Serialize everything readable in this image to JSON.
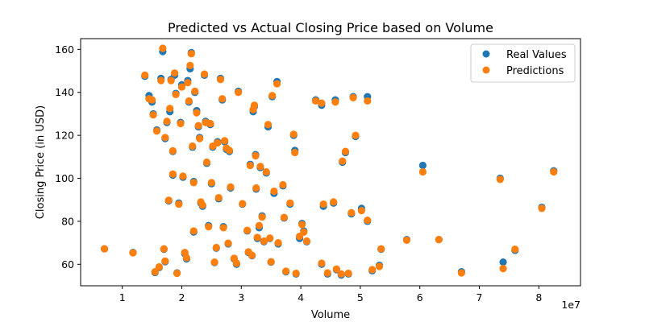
{
  "chart_data": {
    "type": "scatter",
    "title": "Predicted vs Actual Closing Price based on Volume",
    "xlabel": "Volume",
    "ylabel": "Closing Price (in USD)",
    "x_offset_label": "1e7",
    "xlim": [
      0.3,
      8.7
    ],
    "ylim": [
      50,
      165
    ],
    "xticks": [
      1,
      2,
      3,
      4,
      5,
      6,
      7,
      8
    ],
    "yticks": [
      60,
      80,
      100,
      120,
      140,
      160
    ],
    "grid": false,
    "legend_position": "top-right",
    "colors": {
      "real": "#1f77b4",
      "pred": "#ff7f0e"
    },
    "series": [
      {
        "name": "Real Values",
        "points": [
          [
            0.7,
            67.2
          ],
          [
            1.18,
            65.5
          ],
          [
            1.38,
            147.5
          ],
          [
            1.45,
            138.5
          ],
          [
            1.5,
            135.5
          ],
          [
            1.52,
            130.0
          ],
          [
            1.55,
            56.2
          ],
          [
            1.58,
            122.5
          ],
          [
            1.62,
            58.5
          ],
          [
            1.65,
            146.5
          ],
          [
            1.68,
            159.0
          ],
          [
            1.7,
            67.0
          ],
          [
            1.72,
            118.5
          ],
          [
            1.72,
            61.2
          ],
          [
            1.75,
            126.0
          ],
          [
            1.78,
            89.5
          ],
          [
            1.8,
            131.0
          ],
          [
            1.82,
            146.0
          ],
          [
            1.85,
            101.5
          ],
          [
            1.85,
            112.5
          ],
          [
            1.88,
            148.0
          ],
          [
            1.9,
            139.5
          ],
          [
            1.92,
            56.0
          ],
          [
            1.95,
            88.5
          ],
          [
            1.98,
            126.0
          ],
          [
            2.0,
            143.5
          ],
          [
            2.02,
            100.5
          ],
          [
            2.05,
            65.0
          ],
          [
            2.08,
            62.5
          ],
          [
            2.1,
            145.5
          ],
          [
            2.12,
            135.5
          ],
          [
            2.14,
            151.0
          ],
          [
            2.16,
            158.5
          ],
          [
            2.18,
            114.5
          ],
          [
            2.2,
            98.5
          ],
          [
            2.2,
            75.0
          ],
          [
            2.22,
            140.0
          ],
          [
            2.25,
            131.5
          ],
          [
            2.28,
            124.0
          ],
          [
            2.3,
            119.0
          ],
          [
            2.32,
            88.5
          ],
          [
            2.35,
            87.0
          ],
          [
            2.38,
            148.0
          ],
          [
            2.4,
            126.5
          ],
          [
            2.42,
            107.0
          ],
          [
            2.45,
            78.0
          ],
          [
            2.48,
            125.0
          ],
          [
            2.5,
            97.5
          ],
          [
            2.52,
            114.5
          ],
          [
            2.55,
            60.8
          ],
          [
            2.58,
            67.5
          ],
          [
            2.6,
            117.0
          ],
          [
            2.62,
            90.5
          ],
          [
            2.65,
            146.5
          ],
          [
            2.68,
            136.5
          ],
          [
            2.7,
            77.5
          ],
          [
            2.72,
            117.0
          ],
          [
            2.75,
            113.5
          ],
          [
            2.78,
            69.5
          ],
          [
            2.8,
            112.5
          ],
          [
            2.82,
            95.5
          ],
          [
            2.88,
            62.5
          ],
          [
            2.92,
            60.0
          ],
          [
            2.95,
            140.5
          ],
          [
            3.02,
            88.0
          ],
          [
            3.1,
            75.5
          ],
          [
            3.12,
            65.5
          ],
          [
            3.15,
            106.5
          ],
          [
            3.18,
            64.0
          ],
          [
            3.2,
            131.0
          ],
          [
            3.22,
            133.5
          ],
          [
            3.24,
            111.0
          ],
          [
            3.25,
            95.0
          ],
          [
            3.27,
            72.0
          ],
          [
            3.3,
            77.0
          ],
          [
            3.32,
            105.0
          ],
          [
            3.35,
            82.5
          ],
          [
            3.38,
            70.5
          ],
          [
            3.42,
            102.5
          ],
          [
            3.45,
            124.0
          ],
          [
            3.48,
            72.0
          ],
          [
            3.5,
            61.0
          ],
          [
            3.52,
            138.0
          ],
          [
            3.55,
            93.0
          ],
          [
            3.6,
            145.0
          ],
          [
            3.62,
            69.5
          ],
          [
            3.7,
            96.5
          ],
          [
            3.72,
            81.5
          ],
          [
            3.75,
            56.5
          ],
          [
            3.82,
            88.0
          ],
          [
            3.88,
            120.0
          ],
          [
            3.9,
            113.0
          ],
          [
            3.92,
            55.5
          ],
          [
            3.98,
            72.0
          ],
          [
            4.02,
            79.0
          ],
          [
            4.05,
            75.5
          ],
          [
            4.1,
            70.5
          ],
          [
            4.25,
            136.5
          ],
          [
            4.35,
            134.0
          ],
          [
            4.35,
            60.0
          ],
          [
            4.38,
            87.0
          ],
          [
            4.45,
            55.5
          ],
          [
            4.55,
            88.5
          ],
          [
            4.58,
            136.5
          ],
          [
            4.6,
            57.5
          ],
          [
            4.68,
            55.0
          ],
          [
            4.7,
            107.5
          ],
          [
            4.75,
            112.0
          ],
          [
            4.8,
            55.5
          ],
          [
            4.85,
            83.5
          ],
          [
            4.88,
            138.0
          ],
          [
            4.92,
            119.5
          ],
          [
            5.02,
            86.0
          ],
          [
            5.12,
            80.0
          ],
          [
            5.12,
            138.0
          ],
          [
            5.2,
            57.0
          ],
          [
            5.32,
            59.5
          ],
          [
            5.35,
            67.0
          ],
          [
            5.78,
            71.5
          ],
          [
            6.05,
            106.0
          ],
          [
            6.32,
            71.5
          ],
          [
            6.7,
            56.5
          ],
          [
            7.35,
            100.0
          ],
          [
            7.4,
            61.0
          ],
          [
            7.6,
            66.5
          ],
          [
            8.05,
            86.5
          ],
          [
            8.25,
            103.5
          ]
        ]
      },
      {
        "name": "Predictions",
        "points": [
          [
            0.7,
            67.2
          ],
          [
            1.18,
            65.3
          ],
          [
            1.38,
            148.0
          ],
          [
            1.45,
            137.0
          ],
          [
            1.5,
            136.5
          ],
          [
            1.52,
            129.5
          ],
          [
            1.55,
            56.5
          ],
          [
            1.58,
            122.0
          ],
          [
            1.62,
            58.8
          ],
          [
            1.65,
            145.5
          ],
          [
            1.68,
            160.5
          ],
          [
            1.7,
            67.2
          ],
          [
            1.72,
            119.0
          ],
          [
            1.72,
            61.5
          ],
          [
            1.75,
            126.5
          ],
          [
            1.78,
            89.8
          ],
          [
            1.8,
            132.5
          ],
          [
            1.82,
            145.5
          ],
          [
            1.85,
            102.0
          ],
          [
            1.85,
            112.8
          ],
          [
            1.88,
            149.0
          ],
          [
            1.9,
            139.0
          ],
          [
            1.92,
            55.8
          ],
          [
            1.95,
            88.0
          ],
          [
            1.98,
            125.5
          ],
          [
            2.0,
            142.5
          ],
          [
            2.02,
            101.0
          ],
          [
            2.05,
            65.5
          ],
          [
            2.08,
            63.0
          ],
          [
            2.1,
            144.5
          ],
          [
            2.12,
            136.0
          ],
          [
            2.14,
            152.5
          ],
          [
            2.16,
            158.0
          ],
          [
            2.18,
            115.0
          ],
          [
            2.2,
            98.0
          ],
          [
            2.2,
            75.5
          ],
          [
            2.22,
            140.5
          ],
          [
            2.25,
            130.5
          ],
          [
            2.28,
            124.5
          ],
          [
            2.3,
            118.5
          ],
          [
            2.32,
            89.0
          ],
          [
            2.35,
            87.5
          ],
          [
            2.38,
            148.5
          ],
          [
            2.4,
            126.0
          ],
          [
            2.42,
            107.5
          ],
          [
            2.45,
            77.5
          ],
          [
            2.48,
            125.5
          ],
          [
            2.5,
            98.0
          ],
          [
            2.52,
            115.0
          ],
          [
            2.55,
            61.0
          ],
          [
            2.58,
            67.8
          ],
          [
            2.6,
            116.5
          ],
          [
            2.62,
            91.0
          ],
          [
            2.65,
            146.0
          ],
          [
            2.68,
            137.0
          ],
          [
            2.7,
            77.0
          ],
          [
            2.72,
            117.5
          ],
          [
            2.75,
            114.0
          ],
          [
            2.78,
            69.8
          ],
          [
            2.8,
            113.0
          ],
          [
            2.82,
            96.0
          ],
          [
            2.88,
            62.8
          ],
          [
            2.92,
            60.5
          ],
          [
            2.95,
            140.0
          ],
          [
            3.02,
            88.2
          ],
          [
            3.1,
            75.8
          ],
          [
            3.12,
            65.8
          ],
          [
            3.15,
            106.0
          ],
          [
            3.18,
            64.2
          ],
          [
            3.2,
            132.0
          ],
          [
            3.22,
            134.0
          ],
          [
            3.24,
            110.5
          ],
          [
            3.25,
            95.5
          ],
          [
            3.27,
            72.5
          ],
          [
            3.3,
            78.0
          ],
          [
            3.32,
            105.5
          ],
          [
            3.35,
            82.0
          ],
          [
            3.38,
            70.8
          ],
          [
            3.42,
            103.0
          ],
          [
            3.45,
            125.0
          ],
          [
            3.48,
            72.2
          ],
          [
            3.5,
            61.2
          ],
          [
            3.52,
            138.5
          ],
          [
            3.55,
            94.0
          ],
          [
            3.6,
            144.0
          ],
          [
            3.62,
            70.0
          ],
          [
            3.7,
            97.0
          ],
          [
            3.72,
            81.8
          ],
          [
            3.75,
            56.8
          ],
          [
            3.82,
            88.5
          ],
          [
            3.88,
            120.5
          ],
          [
            3.9,
            112.0
          ],
          [
            3.92,
            55.8
          ],
          [
            3.98,
            73.0
          ],
          [
            4.02,
            78.5
          ],
          [
            4.05,
            75.0
          ],
          [
            4.1,
            70.8
          ],
          [
            4.25,
            136.0
          ],
          [
            4.35,
            135.0
          ],
          [
            4.35,
            60.5
          ],
          [
            4.38,
            88.0
          ],
          [
            4.45,
            56.0
          ],
          [
            4.55,
            89.0
          ],
          [
            4.58,
            135.5
          ],
          [
            4.6,
            57.8
          ],
          [
            4.68,
            55.5
          ],
          [
            4.7,
            108.0
          ],
          [
            4.75,
            112.5
          ],
          [
            4.8,
            55.8
          ],
          [
            4.85,
            84.0
          ],
          [
            4.88,
            137.5
          ],
          [
            4.92,
            120.0
          ],
          [
            5.02,
            85.0
          ],
          [
            5.12,
            80.5
          ],
          [
            5.12,
            136.0
          ],
          [
            5.2,
            57.5
          ],
          [
            5.32,
            59.0
          ],
          [
            5.35,
            67.2
          ],
          [
            5.78,
            71.2
          ],
          [
            6.05,
            103.0
          ],
          [
            6.32,
            71.5
          ],
          [
            6.7,
            56.0
          ],
          [
            7.35,
            99.5
          ],
          [
            7.4,
            58.0
          ],
          [
            7.6,
            67.0
          ],
          [
            8.05,
            86.0
          ],
          [
            8.25,
            103.0
          ]
        ]
      }
    ]
  }
}
